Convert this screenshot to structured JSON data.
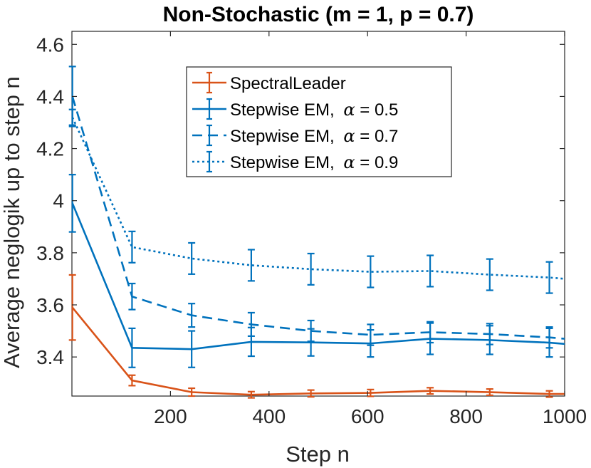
{
  "chart_data": {
    "type": "line",
    "title": "Non-Stochastic (m = 1, p = 0.7)",
    "xlabel": "Step n",
    "ylabel": "Average neglogik up to step n",
    "xlim": [
      0,
      1000
    ],
    "ylim": [
      3.25,
      4.65
    ],
    "xticks": [
      200,
      400,
      600,
      800,
      1000
    ],
    "xtick_labels": [
      "200",
      "400",
      "600",
      "800",
      "1000"
    ],
    "yticks": [
      3.4,
      3.6,
      3.8,
      4.0,
      4.2,
      4.4,
      4.6
    ],
    "ytick_labels": [
      "3.4",
      "3.6",
      "3.8",
      "4",
      "4.2",
      "4.4",
      "4.6"
    ],
    "grid": false,
    "legend_position": "top-center",
    "x": [
      1,
      122,
      243,
      364,
      485,
      606,
      727,
      848,
      969,
      1000
    ],
    "series": [
      {
        "name": "SpectralLeader",
        "color": "#D95319",
        "style": "solid",
        "values": [
          3.59,
          3.31,
          3.265,
          3.255,
          3.26,
          3.262,
          3.27,
          3.265,
          3.258,
          3.258
        ],
        "errors": [
          0.125,
          0.02,
          0.015,
          0.012,
          0.013,
          0.013,
          0.012,
          0.012,
          0.012,
          null
        ]
      },
      {
        "name": "Stepwise EM, α = 0.5",
        "legend_prefix": "Stepwise EM, ",
        "legend_symbol": "α",
        "legend_suffix": " = 0.5",
        "color": "#0072BD",
        "style": "solid",
        "values": [
          3.99,
          3.435,
          3.43,
          3.458,
          3.456,
          3.452,
          3.47,
          3.465,
          3.455,
          3.45
        ],
        "errors": [
          0.11,
          0.075,
          0.07,
          0.055,
          0.052,
          0.052,
          0.06,
          0.055,
          0.055,
          null
        ]
      },
      {
        "name": "Stepwise EM, α = 0.7",
        "legend_prefix": "Stepwise EM, ",
        "legend_symbol": "α",
        "legend_suffix": " = 0.7",
        "color": "#0072BD",
        "style": "dashed",
        "values": [
          4.4,
          3.632,
          3.56,
          3.525,
          3.5,
          3.485,
          3.495,
          3.488,
          3.475,
          3.47
        ],
        "errors": [
          0.115,
          0.05,
          0.045,
          0.045,
          0.04,
          0.04,
          0.04,
          0.04,
          0.04,
          null
        ]
      },
      {
        "name": "Stepwise EM, α = 0.9",
        "legend_prefix": "Stepwise EM, ",
        "legend_symbol": "α",
        "legend_suffix": " = 0.9",
        "color": "#0072BD",
        "style": "dotted",
        "values": [
          4.32,
          3.822,
          3.778,
          3.752,
          3.737,
          3.727,
          3.73,
          3.716,
          3.705,
          3.7
        ],
        "errors": [
          0.03,
          0.06,
          0.06,
          0.06,
          0.06,
          0.06,
          0.06,
          0.06,
          0.06,
          null
        ]
      }
    ]
  }
}
